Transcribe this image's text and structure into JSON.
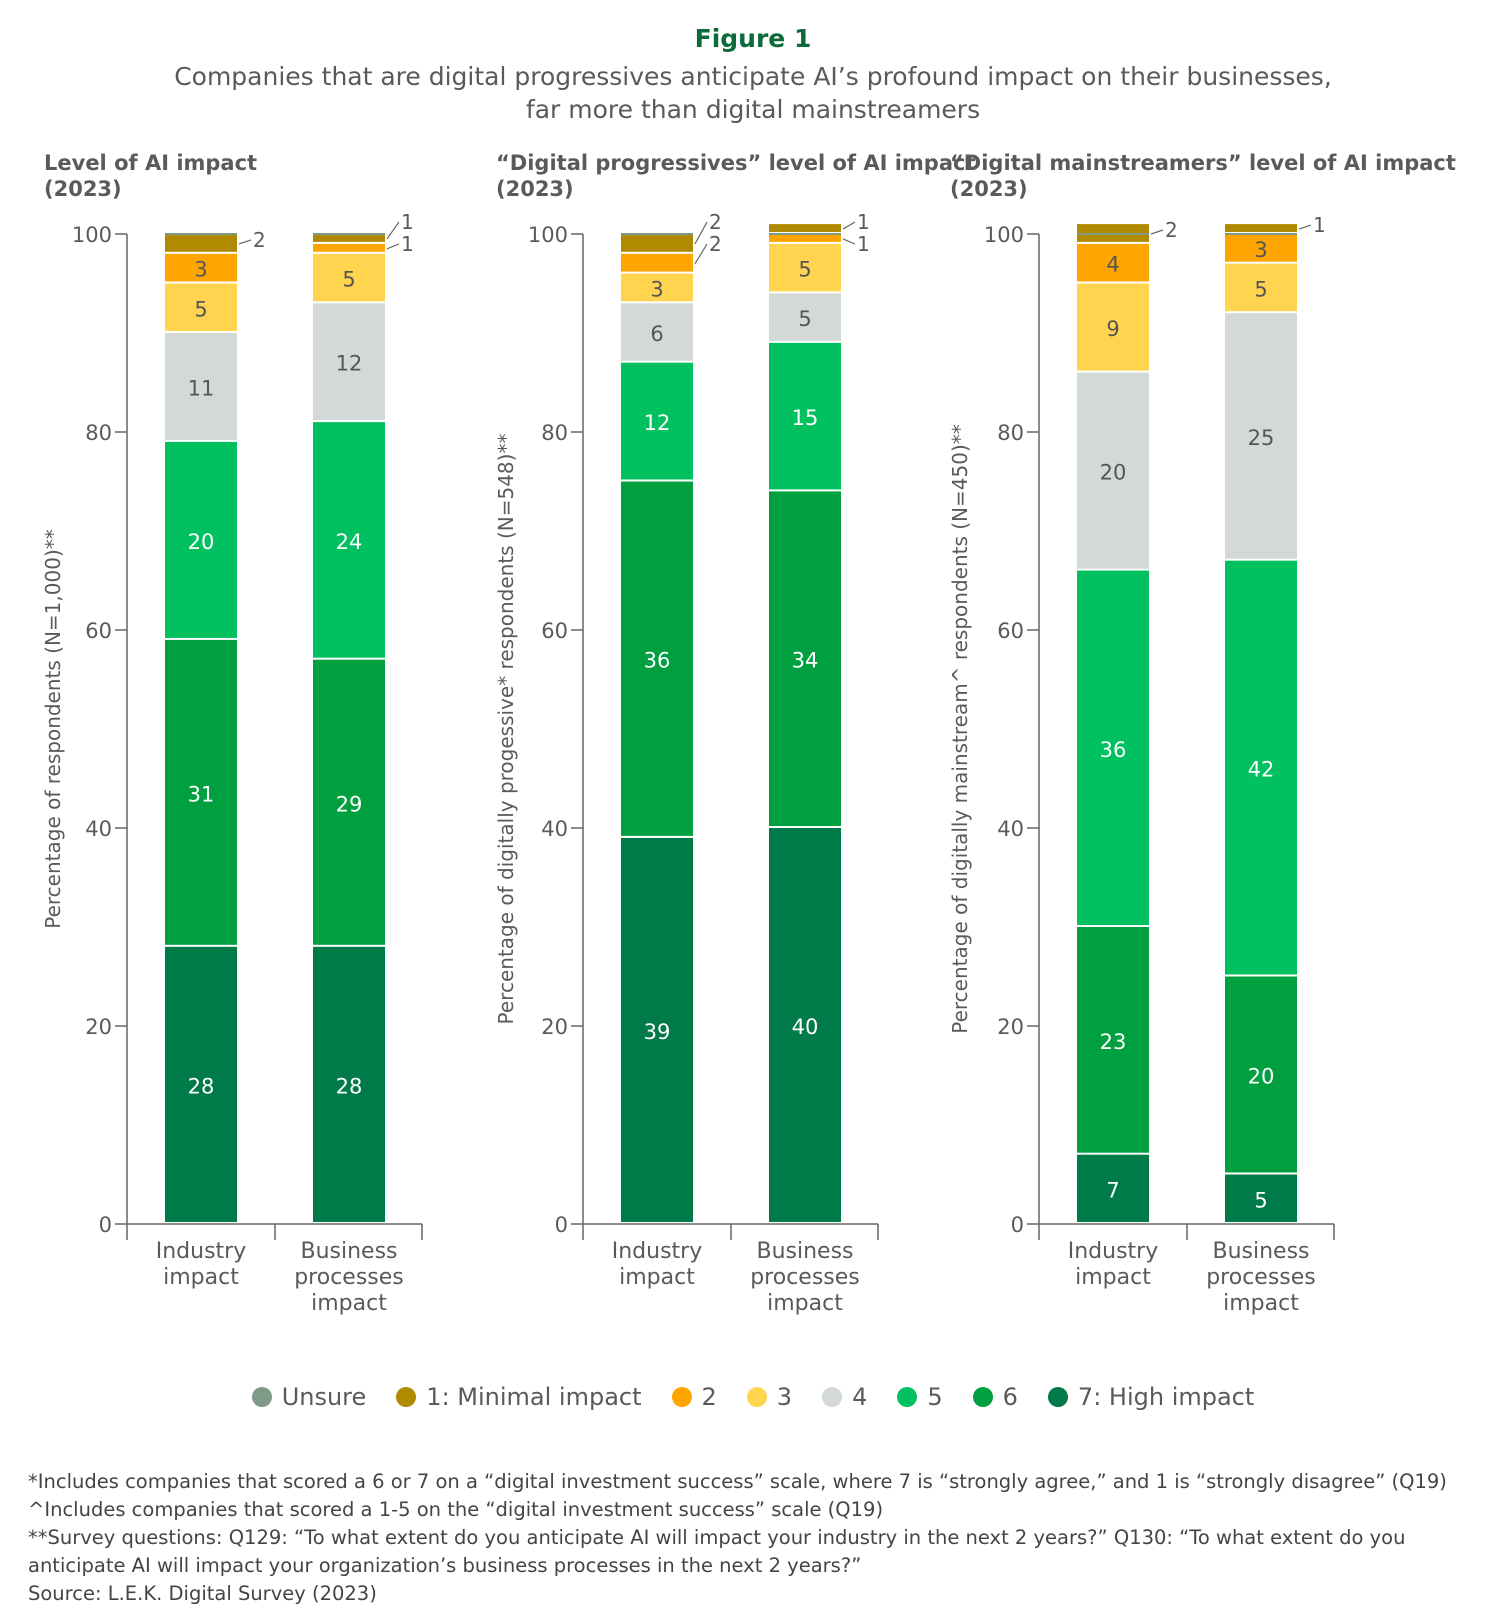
{
  "figure_label": "Figure 1",
  "title_lines": [
    "Companies that are digital progressives anticipate AI’s profound impact on their businesses,",
    "far more than digital mainstreamers"
  ],
  "legend": [
    {
      "label": "Unsure",
      "color": "#7f9a89"
    },
    {
      "label": "1: Minimal impact",
      "color": "#b08a00"
    },
    {
      "label": "2",
      "color": "#ffa500"
    },
    {
      "label": "3",
      "color": "#ffd54f"
    },
    {
      "label": "4",
      "color": "#d3d9d7"
    },
    {
      "label": "5",
      "color": "#00c060"
    },
    {
      "label": "6",
      "color": "#00a040"
    },
    {
      "label": "7: High impact",
      "color": "#007a48"
    }
  ],
  "notes": [
    "*Includes companies that scored a 6 or 7 on a “digital investment success” scale, where 7 is “strongly agree,” and 1 is “strongly disagree” (Q19)",
    "^Includes companies that scored a 1-5 on the “digital investment success” scale (Q19)",
    "**Survey questions: Q129: “To what extent do you anticipate AI will impact your industry in the next 2 years?” Q130: “To what extent do you",
    "anticipate AI will impact your organization’s business processes in the next 2 years?”",
    "Source: L.E.K. Digital Survey (2023)"
  ],
  "chart_data": [
    {
      "type": "bar",
      "stacked": true,
      "title": [
        "Level of AI impact",
        "(2023)"
      ],
      "ylabel": "Percentage of respondents (N=1,000)**",
      "ylim": [
        0,
        100
      ],
      "yticks": [
        0,
        20,
        40,
        60,
        80,
        100
      ],
      "categories": [
        [
          "Industry",
          "impact"
        ],
        [
          "Business",
          "processes",
          "impact"
        ]
      ],
      "series": [
        {
          "name": "7: High impact",
          "values": [
            28,
            28
          ]
        },
        {
          "name": "6",
          "values": [
            31,
            29
          ]
        },
        {
          "name": "5",
          "values": [
            20,
            24
          ]
        },
        {
          "name": "4",
          "values": [
            11,
            12
          ]
        },
        {
          "name": "3",
          "values": [
            5,
            5
          ]
        },
        {
          "name": "2",
          "values": [
            3,
            1
          ]
        },
        {
          "name": "1: Minimal impact",
          "values": [
            2,
            1
          ]
        },
        {
          "name": "Unsure",
          "values": [
            0,
            0
          ]
        }
      ]
    },
    {
      "type": "bar",
      "stacked": true,
      "title": [
        "“Digital progressives” level of AI impact",
        "(2023)"
      ],
      "ylabel": "Percentage of digitally progessive* respondents (N=548)**",
      "ylim": [
        0,
        100
      ],
      "yticks": [
        0,
        20,
        40,
        60,
        80,
        100
      ],
      "categories": [
        [
          "Industry",
          "impact"
        ],
        [
          "Business",
          "processes",
          "impact"
        ]
      ],
      "series": [
        {
          "name": "7: High impact",
          "values": [
            39,
            40
          ]
        },
        {
          "name": "6",
          "values": [
            36,
            34
          ]
        },
        {
          "name": "5",
          "values": [
            12,
            15
          ]
        },
        {
          "name": "4",
          "values": [
            6,
            5
          ]
        },
        {
          "name": "3",
          "values": [
            3,
            5
          ]
        },
        {
          "name": "2",
          "values": [
            2,
            1
          ]
        },
        {
          "name": "1: Minimal impact",
          "values": [
            2,
            1
          ]
        },
        {
          "name": "Unsure",
          "values": [
            0,
            0
          ]
        }
      ]
    },
    {
      "type": "bar",
      "stacked": true,
      "title": [
        "“Digital mainstreamers” level of AI impact",
        "(2023)"
      ],
      "ylabel": "Percentage of digitally mainstream^ respondents (N=450)**",
      "ylim": [
        0,
        100
      ],
      "yticks": [
        0,
        20,
        40,
        60,
        80,
        100
      ],
      "categories": [
        [
          "Industry",
          "impact"
        ],
        [
          "Business",
          "processes",
          "impact"
        ]
      ],
      "series": [
        {
          "name": "7: High impact",
          "values": [
            7,
            5
          ]
        },
        {
          "name": "6",
          "values": [
            23,
            20
          ]
        },
        {
          "name": "5",
          "values": [
            36,
            42
          ]
        },
        {
          "name": "4",
          "values": [
            20,
            25
          ]
        },
        {
          "name": "3",
          "values": [
            9,
            5
          ]
        },
        {
          "name": "2",
          "values": [
            4,
            3
          ]
        },
        {
          "name": "1: Minimal impact",
          "values": [
            2,
            1
          ]
        },
        {
          "name": "Unsure",
          "values": [
            0,
            0
          ]
        }
      ]
    }
  ]
}
